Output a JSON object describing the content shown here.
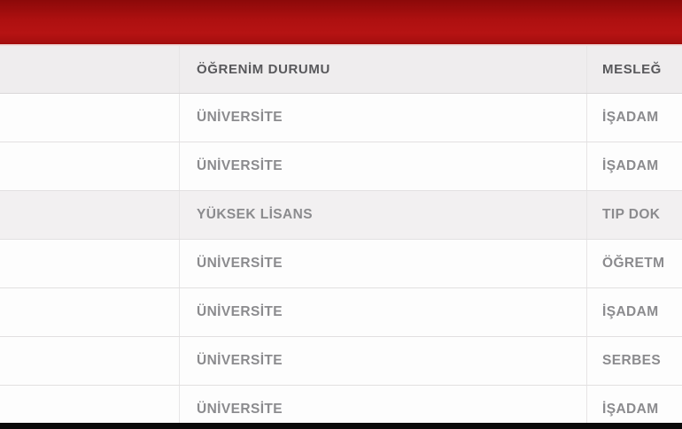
{
  "colors": {
    "top_bar_red": "#b11111",
    "header_row_bg": "#efedee",
    "highlight_row_bg": "#f2f0f1",
    "header_text": "#58585b",
    "cell_text": "#8b8b8e",
    "bottom_bar_black": "#0a0a0a"
  },
  "table": {
    "headers": {
      "name": "",
      "education": "ÖĞRENİM DURUMU",
      "profession": "MESLEĞ"
    },
    "rows": [
      {
        "name": "",
        "education": "ÜNİVERSİTE",
        "profession": "İŞADAM",
        "highlighted": false
      },
      {
        "name": "",
        "education": "ÜNİVERSİTE",
        "profession": "İŞADAM",
        "highlighted": false
      },
      {
        "name": "",
        "education": "YÜKSEK LİSANS",
        "profession": "TIP DOK",
        "highlighted": true
      },
      {
        "name": "",
        "education": "ÜNİVERSİTE",
        "profession": "ÖĞRETM",
        "highlighted": false
      },
      {
        "name": "",
        "education": "ÜNİVERSİTE",
        "profession": "İŞADAM",
        "highlighted": false
      },
      {
        "name": "",
        "education": "ÜNİVERSİTE",
        "profession": "SERBES",
        "highlighted": false
      },
      {
        "name": "",
        "education": "ÜNİVERSİTE",
        "profession": "İŞADAM",
        "highlighted": false
      }
    ]
  }
}
